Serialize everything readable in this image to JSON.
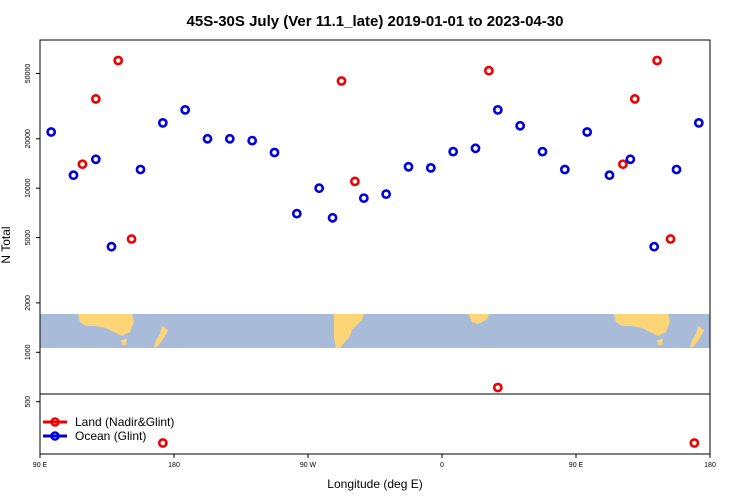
{
  "chart_data": {
    "type": "scatter",
    "title": "45S-30S July (Ver 11.1_late)   2019-01-01 to 2023-04-30",
    "xlabel": "Longitude (deg E)",
    "ylabel": "N Total",
    "x_scale": "linear",
    "y_scale": "log",
    "xlim": [
      90,
      540
    ],
    "ylim": [
      240,
      80000
    ],
    "x_ticks": [
      90,
      180,
      270,
      360,
      450,
      540
    ],
    "x_tick_labels": [
      "90 E",
      "180",
      "90 W",
      "0",
      "90 E",
      "180"
    ],
    "y_ticks": [
      500,
      1000,
      2000,
      5000,
      10000,
      20000,
      50000
    ],
    "y_tick_labels": [
      "500",
      "1000",
      "2000",
      "5000",
      "10000",
      "20000",
      "50000"
    ],
    "map_band": {
      "ocean_color": "#a8bcd9",
      "land_color": "#fcd577",
      "lon_range": [
        90,
        540
      ]
    },
    "legend": {
      "position": "bottom-left",
      "entries": [
        {
          "label": "Land (Nadir&Glint)",
          "color": "#ee0000"
        },
        {
          "label": "Ocean (Glint)",
          "color": "#0000dd"
        }
      ]
    },
    "series": [
      {
        "name": "Land (Nadir&Glint)",
        "color": "#ee0000",
        "points": [
          [
            118.5,
            14000
          ],
          [
            127.5,
            35000
          ],
          [
            142.5,
            60000
          ],
          [
            151.5,
            4900
          ],
          [
            172.5,
            280
          ],
          [
            292.5,
            45000
          ],
          [
            301.5,
            11000
          ],
          [
            391.5,
            52000
          ],
          [
            397.5,
            610
          ],
          [
            481.5,
            14000
          ],
          [
            489.5,
            35000
          ],
          [
            504.5,
            60000
          ],
          [
            513.5,
            4900
          ],
          [
            529.5,
            280
          ]
        ]
      },
      {
        "name": "Ocean (Glint)",
        "color": "#0000dd",
        "points": [
          [
            97.5,
            22000
          ],
          [
            112.5,
            12000
          ],
          [
            127.5,
            15000
          ],
          [
            138.0,
            4400
          ],
          [
            157.5,
            13000
          ],
          [
            172.5,
            25000
          ],
          [
            187.5,
            30000
          ],
          [
            202.5,
            20000
          ],
          [
            217.5,
            20000
          ],
          [
            232.5,
            19500
          ],
          [
            247.5,
            16500
          ],
          [
            262.5,
            7000
          ],
          [
            277.5,
            10000
          ],
          [
            286.5,
            6600
          ],
          [
            307.5,
            8700
          ],
          [
            322.5,
            9200
          ],
          [
            337.5,
            13500
          ],
          [
            352.5,
            13300
          ],
          [
            367.5,
            16700
          ],
          [
            382.5,
            17500
          ],
          [
            397.5,
            30000
          ],
          [
            412.5,
            24000
          ],
          [
            427.5,
            16700
          ],
          [
            442.5,
            13000
          ],
          [
            457.5,
            22000
          ],
          [
            472.5,
            12000
          ],
          [
            486.5,
            15000
          ],
          [
            502.5,
            4400
          ],
          [
            517.5,
            13000
          ],
          [
            532.5,
            25000
          ]
        ]
      }
    ]
  }
}
